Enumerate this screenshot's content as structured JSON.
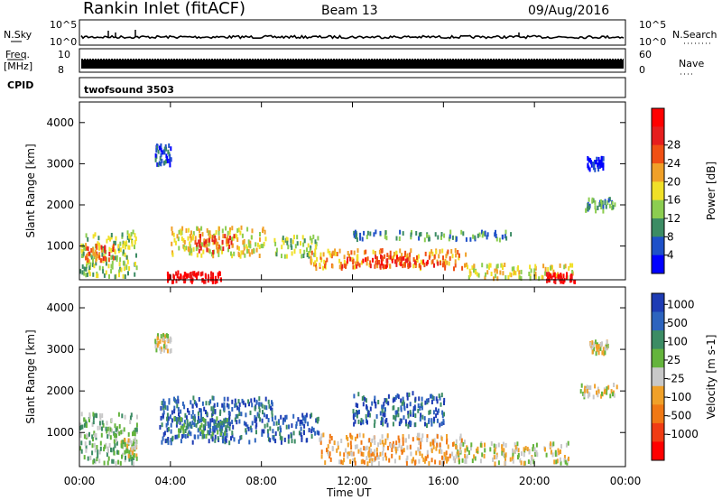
{
  "header": {
    "radar": "Rankin Inlet (fitACF)",
    "beam": "Beam 13",
    "date": "09/Aug/2016"
  },
  "noise_panel": {
    "left_label": "N.Sky",
    "right_label": "N.Search",
    "left_ticks": [
      "10^5",
      "10^0"
    ],
    "right_ticks": [
      "10^5",
      "10^0"
    ]
  },
  "freq_panel": {
    "left_label_1": "Freq.",
    "left_label_2": "[MHz]",
    "right_label": "Nave",
    "left_ticks": [
      "10",
      "8"
    ],
    "right_ticks": [
      "60",
      "0"
    ]
  },
  "cpid": {
    "label": "CPID",
    "value": "twofsound 3503"
  },
  "chart_data": [
    {
      "type": "heatmap",
      "title": "",
      "xlabel": "Time UT",
      "ylabel": "Slant Range [km]",
      "x_ticks": [
        "00:00",
        "04:00",
        "08:00",
        "12:00",
        "16:00",
        "20:00",
        "00:00"
      ],
      "y_ticks": [
        "1000",
        "2000",
        "3000",
        "4000"
      ],
      "colorbar_label": "Power [dB]",
      "colorbar_ticks": [
        "4",
        "8",
        "12",
        "16",
        "20",
        "24",
        "28"
      ],
      "colors": [
        "#0000ff",
        "#1e50c8",
        "#3c8c64",
        "#8ccd50",
        "#f0e028",
        "#f0a028",
        "#f05014",
        "#e61e1e",
        "#ff0000"
      ],
      "regions": [
        {
          "t0": 0.0,
          "t1": 2.5,
          "r0": 300,
          "r1": 1400,
          "level": 3
        },
        {
          "t0": 0.2,
          "t1": 1.5,
          "r0": 700,
          "r1": 1100,
          "level": 6
        },
        {
          "t0": 3.8,
          "t1": 5.0,
          "r0": 180,
          "r1": 420,
          "level": 8
        },
        {
          "t0": 4.8,
          "t1": 6.2,
          "r0": 180,
          "r1": 400,
          "level": 8
        },
        {
          "t0": 4.0,
          "t1": 8.2,
          "r0": 800,
          "r1": 1500,
          "level": 4
        },
        {
          "t0": 5.0,
          "t1": 6.8,
          "r0": 900,
          "r1": 1300,
          "level": 6
        },
        {
          "t0": 8.5,
          "t1": 10.5,
          "r0": 800,
          "r1": 1300,
          "level": 3
        },
        {
          "t0": 10.0,
          "t1": 17.0,
          "r0": 500,
          "r1": 950,
          "level": 5
        },
        {
          "t0": 11.5,
          "t1": 16.0,
          "r0": 550,
          "r1": 800,
          "level": 7
        },
        {
          "t0": 12.0,
          "t1": 19.0,
          "r0": 1200,
          "r1": 1400,
          "level": 2
        },
        {
          "t0": 17.0,
          "t1": 21.8,
          "r0": 250,
          "r1": 600,
          "level": 4
        },
        {
          "t0": 20.5,
          "t1": 21.8,
          "r0": 180,
          "r1": 380,
          "level": 8
        },
        {
          "t0": 22.2,
          "t1": 23.5,
          "r0": 1900,
          "r1": 2200,
          "level": 2
        },
        {
          "t0": 22.3,
          "t1": 23.0,
          "r0": 2900,
          "r1": 3200,
          "level": 0
        },
        {
          "t0": 3.3,
          "t1": 4.0,
          "r0": 3000,
          "r1": 3500,
          "level": 1
        }
      ]
    },
    {
      "type": "heatmap",
      "title": "",
      "xlabel": "Time UT",
      "ylabel": "Slant Range [km]",
      "x_ticks": [
        "00:00",
        "04:00",
        "08:00",
        "12:00",
        "16:00",
        "20:00",
        "00:00"
      ],
      "y_ticks": [
        "1000",
        "2000",
        "3000",
        "4000"
      ],
      "colorbar_label": "Velocity [m s-1]",
      "colorbar_ticks": [
        "1000",
        "500",
        "100",
        "25",
        "-25",
        "-100",
        "-500",
        "-1000"
      ],
      "colors": [
        "#1e3cb4",
        "#2d64be",
        "#3c8c64",
        "#64b43c",
        "#c8c8c8",
        "#f0a028",
        "#f07814",
        "#f03c14",
        "#ff0000"
      ],
      "regions": [
        {
          "t0": 0.0,
          "t1": 2.5,
          "r0": 300,
          "r1": 1500,
          "level": 3
        },
        {
          "t0": 1.8,
          "t1": 2.5,
          "r0": 400,
          "r1": 900,
          "level": 4
        },
        {
          "t0": 3.5,
          "t1": 8.5,
          "r0": 800,
          "r1": 1900,
          "level": 1
        },
        {
          "t0": 4.0,
          "t1": 6.5,
          "r0": 900,
          "r1": 1400,
          "level": 2
        },
        {
          "t0": 8.5,
          "t1": 10.5,
          "r0": 800,
          "r1": 1500,
          "level": 1
        },
        {
          "t0": 10.5,
          "t1": 17.0,
          "r0": 300,
          "r1": 1000,
          "level": 5
        },
        {
          "t0": 12.0,
          "t1": 16.0,
          "r0": 1200,
          "r1": 2000,
          "level": 1
        },
        {
          "t0": 16.5,
          "t1": 21.5,
          "r0": 300,
          "r1": 800,
          "level": 4
        },
        {
          "t0": 22.0,
          "t1": 23.6,
          "r0": 1900,
          "r1": 2200,
          "level": 4
        },
        {
          "t0": 22.3,
          "t1": 23.2,
          "r0": 2950,
          "r1": 3250,
          "level": 4
        },
        {
          "t0": 3.3,
          "t1": 4.0,
          "r0": 3000,
          "r1": 3400,
          "level": 4
        }
      ]
    }
  ]
}
